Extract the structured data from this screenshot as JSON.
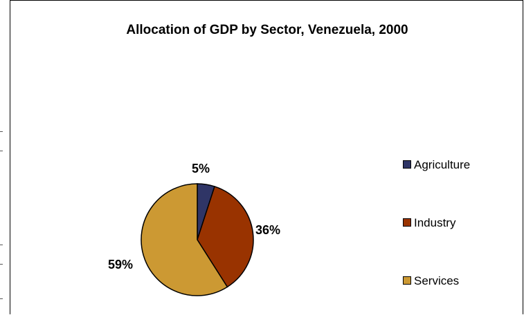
{
  "chart_data": {
    "type": "pie",
    "title": "Allocation of GDP by Sector, Venezuela, 2000",
    "categories": [
      "Agriculture",
      "Industry",
      "Services"
    ],
    "values": [
      5,
      36,
      59
    ],
    "data_labels": [
      "5%",
      "36%",
      "59%"
    ],
    "colors": [
      "#2f3566",
      "#993300",
      "#cc9933"
    ],
    "legend_position": "right"
  }
}
